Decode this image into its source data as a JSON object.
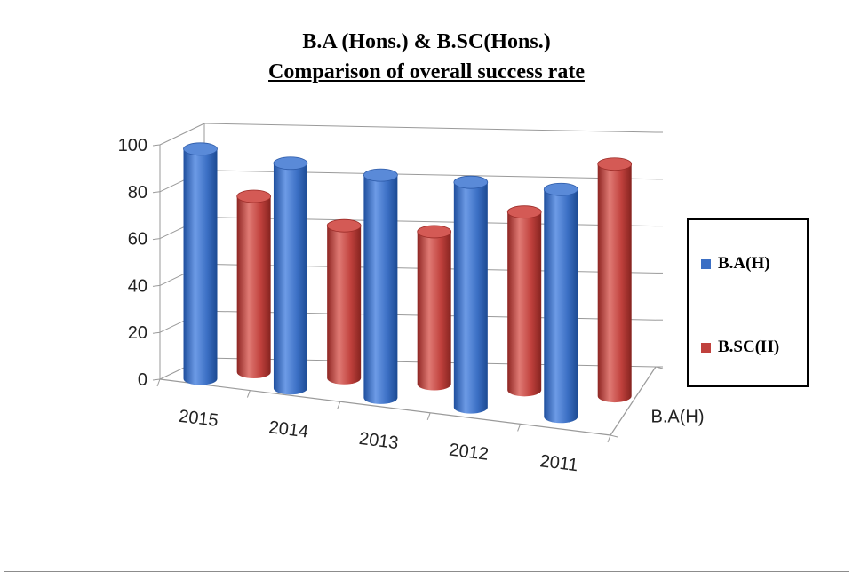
{
  "chart_data": {
    "type": "bar",
    "title": "B.A (Hons.) & B.SC(Hons.)",
    "subtitle": "Comparison of overall success rate",
    "categories": [
      "2015",
      "2014",
      "2013",
      "2012",
      "2011"
    ],
    "series": [
      {
        "name": "B.A(H)",
        "values": [
          98,
          96,
          95,
          96,
          97
        ],
        "color": "#3b6fc4"
      },
      {
        "name": "B.SC(H)",
        "values": [
          75,
          65,
          65,
          76,
          99
        ],
        "color": "#c0413d"
      }
    ],
    "ylim": [
      0,
      100
    ],
    "yticks": [
      0,
      20,
      40,
      60,
      80,
      100
    ],
    "depth_label": "B.A(H)",
    "grid": true,
    "legend_position": "right",
    "style": "3d-cylinder"
  }
}
